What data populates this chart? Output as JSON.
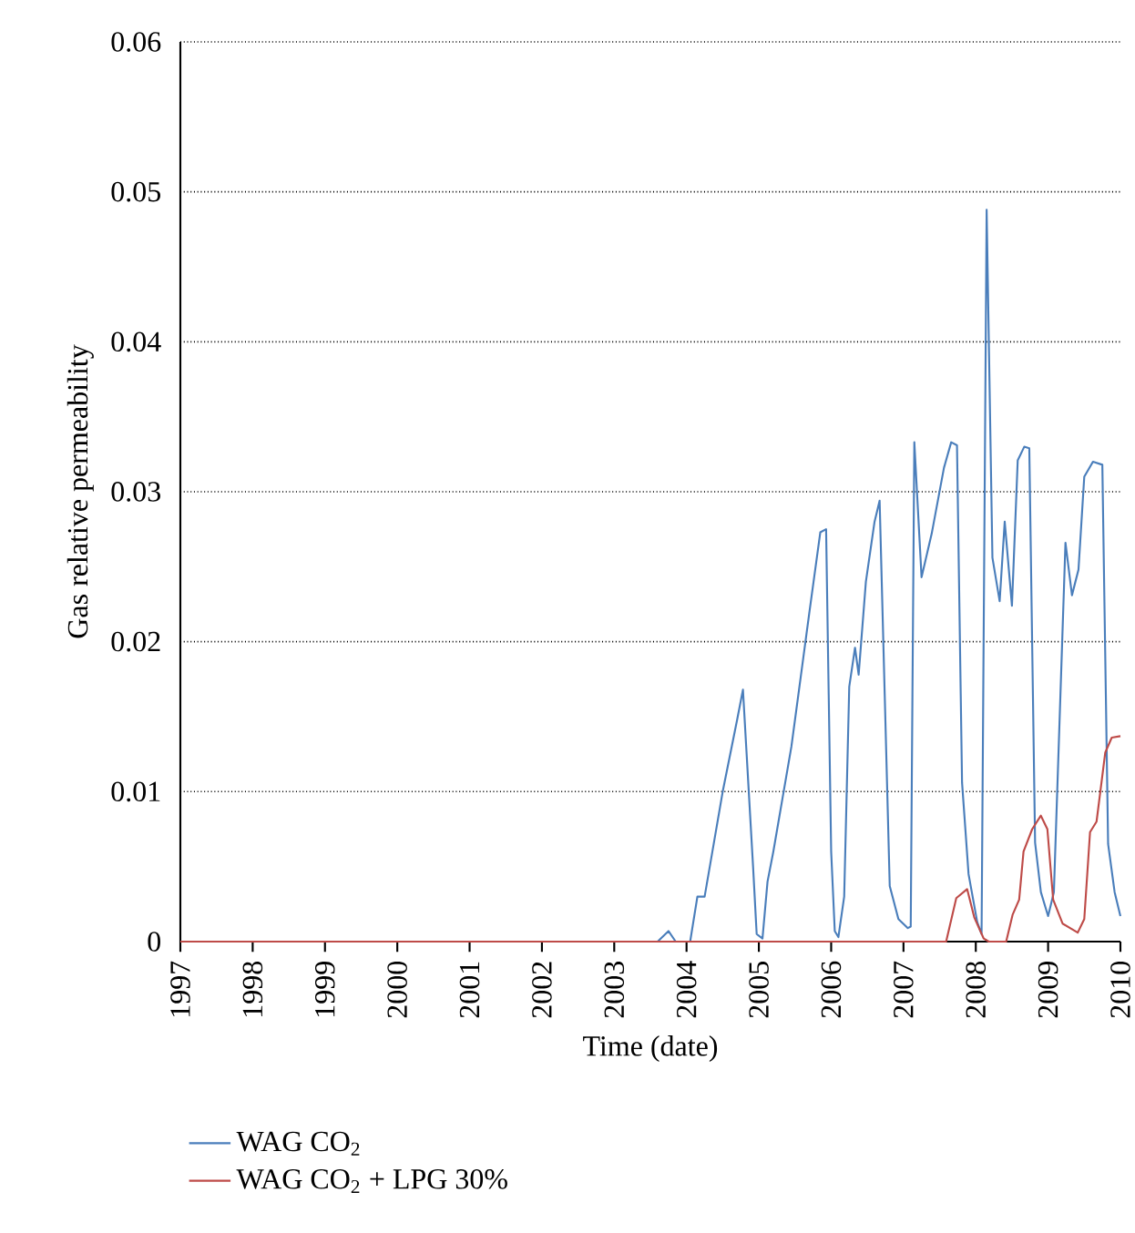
{
  "chart_data": {
    "type": "line",
    "xlabel": "Time (date)",
    "ylabel": "Gas relative permeability",
    "xlim": [
      1997,
      2010
    ],
    "ylim": [
      0,
      0.06
    ],
    "xticks": [
      1997,
      1998,
      1999,
      2000,
      2001,
      2002,
      2003,
      2004,
      2005,
      2006,
      2007,
      2008,
      2009,
      2010
    ],
    "yticks": [
      0,
      0.01,
      0.02,
      0.03,
      0.04,
      0.05,
      0.06
    ],
    "grid": "y",
    "legend": "bottom",
    "marker": "none",
    "line_style": "solid",
    "series": [
      {
        "name": "WAG CO$_{2}$",
        "color": "#4a7ebb",
        "x": [
          1997,
          2003.6,
          2003.75,
          2003.85,
          2004.05,
          2004.15,
          2004.25,
          2004.5,
          2004.7,
          2004.78,
          2004.92,
          2004.97,
          2005.05,
          2005.12,
          2005.2,
          2005.45,
          2005.7,
          2005.85,
          2005.93,
          2006.0,
          2006.05,
          2006.1,
          2006.18,
          2006.25,
          2006.33,
          2006.38,
          2006.48,
          2006.6,
          2006.67,
          2006.81,
          2006.93,
          2007.06,
          2007.1,
          2007.15,
          2007.25,
          2007.39,
          2007.56,
          2007.66,
          2007.74,
          2007.81,
          2007.9,
          2008.02,
          2008.08,
          2008.15,
          2008.23,
          2008.33,
          2008.4,
          2008.5,
          2008.58,
          2008.67,
          2008.74,
          2008.82,
          2008.9,
          2009.0,
          2009.08,
          2009.24,
          2009.33,
          2009.42,
          2009.5,
          2009.62,
          2009.75,
          2009.83,
          2009.92,
          2010.0
        ],
        "values": [
          0,
          0,
          0.0007,
          0,
          0,
          0.003,
          0.003,
          0.01,
          0.0148,
          0.0168,
          0.005,
          0.0005,
          0.0002,
          0.004,
          0.006,
          0.013,
          0.022,
          0.0273,
          0.0275,
          0.006,
          0.0007,
          0.0003,
          0.003,
          0.017,
          0.0196,
          0.0178,
          0.024,
          0.028,
          0.0294,
          0.0037,
          0.0015,
          0.0009,
          0.001,
          0.0333,
          0.0243,
          0.0272,
          0.0316,
          0.0333,
          0.0331,
          0.0106,
          0.0045,
          0.0013,
          0.0005,
          0.0488,
          0.0256,
          0.0227,
          0.028,
          0.0224,
          0.0321,
          0.033,
          0.0329,
          0.0066,
          0.0033,
          0.0017,
          0.0033,
          0.0266,
          0.0231,
          0.0248,
          0.031,
          0.032,
          0.0318,
          0.0065,
          0.0033,
          0.0017
        ]
      },
      {
        "name": "WAG CO$_{2}$ + LPG 30%",
        "color": "#be4b48",
        "x": [
          1997,
          2007.59,
          2007.73,
          2007.88,
          2007.98,
          2008.11,
          2008.18,
          2008.42,
          2008.51,
          2008.6,
          2008.66,
          2008.78,
          2008.9,
          2008.99,
          2009.07,
          2009.2,
          2009.41,
          2009.5,
          2009.58,
          2009.67,
          2009.79,
          2009.88,
          2010.0
        ],
        "values": [
          0,
          0,
          0.0029,
          0.0035,
          0.0016,
          0.0002,
          0,
          0,
          0.0018,
          0.0028,
          0.006,
          0.0075,
          0.0084,
          0.0075,
          0.0028,
          0.0012,
          0.0006,
          0.0015,
          0.0073,
          0.008,
          0.0126,
          0.0136,
          0.0137
        ]
      }
    ]
  }
}
